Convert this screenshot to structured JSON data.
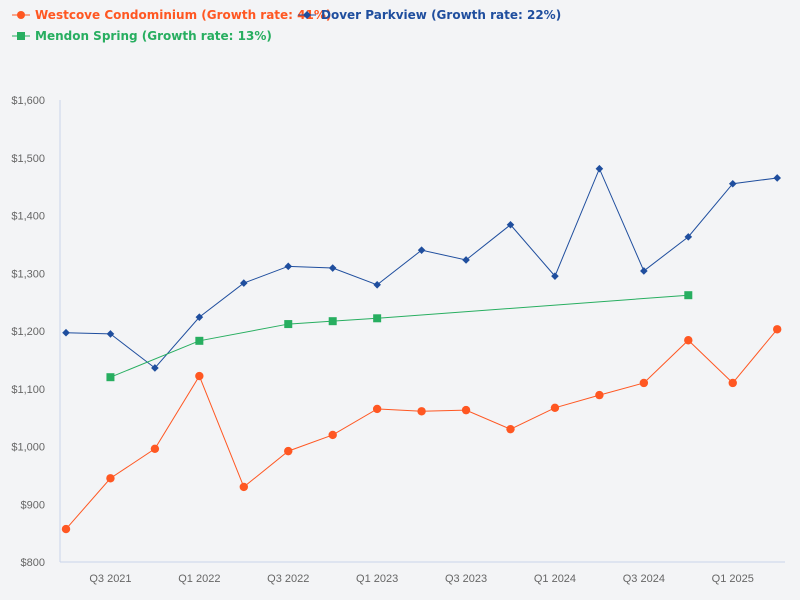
{
  "chart_data": {
    "type": "line",
    "title": "",
    "xlabel": "",
    "ylabel": "",
    "ylim": [
      800,
      1600
    ],
    "yticks": [
      "$800",
      "$900",
      "$1,000",
      "$1,100",
      "$1,200",
      "$1,300",
      "$1,400",
      "$1,500",
      "$1,600"
    ],
    "ytick_values": [
      800,
      900,
      1000,
      1100,
      1200,
      1300,
      1400,
      1500,
      1600
    ],
    "categories": [
      "Q2 2021",
      "Q3 2021",
      "Q4 2021",
      "Q1 2022",
      "Q2 2022",
      "Q3 2022",
      "Q4 2022",
      "Q1 2023",
      "Q2 2023",
      "Q3 2023",
      "Q4 2023",
      "Q1 2024",
      "Q2 2024",
      "Q3 2024",
      "Q4 2024",
      "Q1 2025",
      "Q2 2025"
    ],
    "xtick_labels": [
      "Q3 2021",
      "Q1 2022",
      "Q3 2022",
      "Q1 2023",
      "Q3 2023",
      "Q1 2024",
      "Q3 2024",
      "Q1 2025"
    ],
    "grid": false,
    "legend_placement": "top-left",
    "series": [
      {
        "name": "Westcove Condominium (Growth rate: 41%)",
        "color": "#ff5722",
        "marker": "circle",
        "values": [
          857,
          945,
          996,
          1122,
          930,
          992,
          1020,
          1065,
          1061,
          1063,
          1030,
          1067,
          1089,
          1110,
          1184,
          1110,
          1203
        ]
      },
      {
        "name": "Dover Parkview (Growth rate: 22%)",
        "color": "#1f4e9e",
        "marker": "diamond",
        "values": [
          1197,
          1195,
          1136,
          1224,
          1283,
          1312,
          1309,
          1280,
          1340,
          1323,
          1384,
          1295,
          1481,
          1304,
          1363,
          1455,
          1465
        ]
      },
      {
        "name": "Mendon Spring (Growth rate: 13%)",
        "color": "#27ae60",
        "marker": "square",
        "values": [
          null,
          1120,
          null,
          1183,
          null,
          1212,
          1217,
          1222,
          null,
          null,
          null,
          null,
          null,
          null,
          1262,
          null,
          null
        ]
      }
    ]
  }
}
